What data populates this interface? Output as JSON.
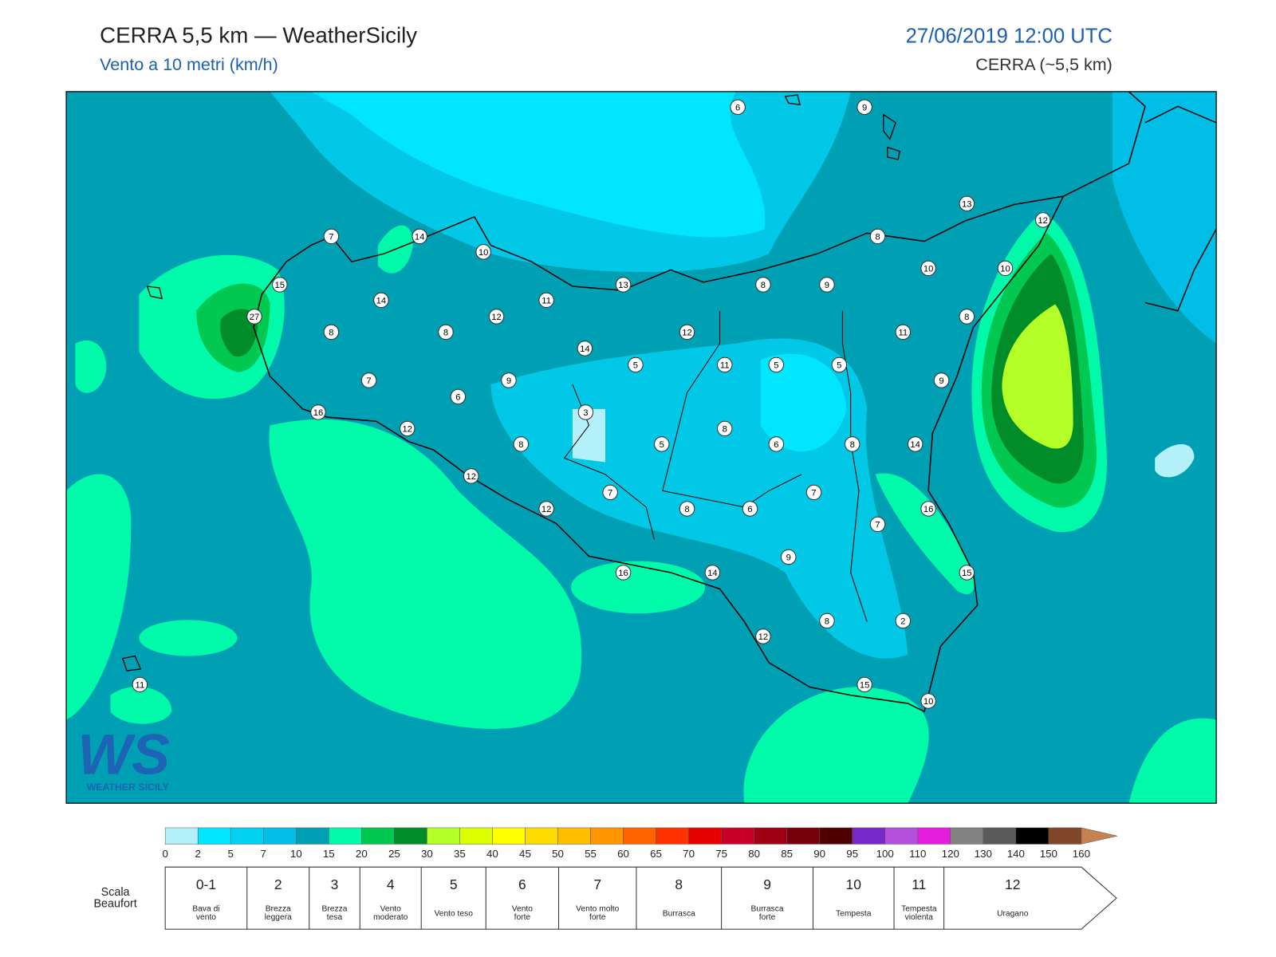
{
  "header": {
    "title": "CERRA 5,5 km — WeatherSicily",
    "subtitle": "Vento a 10 metri (km/h)",
    "datetime": "27/06/2019 12:00 UTC",
    "model": "CERRA (~5,5 km)"
  },
  "map": {
    "station_values": [
      6,
      9,
      13,
      12,
      7,
      14,
      10,
      8,
      15,
      13,
      8,
      9,
      10,
      10,
      14,
      11,
      27,
      12,
      8,
      8,
      8,
      12,
      11,
      14,
      5,
      11,
      5,
      5,
      7,
      9,
      9,
      6,
      16,
      3,
      12,
      8,
      8,
      5,
      6,
      8,
      14,
      12,
      7,
      7,
      12,
      8,
      6,
      16,
      7,
      9,
      16,
      14,
      15,
      8,
      2,
      12,
      11,
      15,
      10
    ]
  },
  "logo": {
    "mark": "WS",
    "name": "WEATHER SICILY"
  },
  "colorbar": {
    "ticks": [
      0,
      2,
      5,
      7,
      10,
      15,
      20,
      25,
      30,
      35,
      40,
      45,
      50,
      55,
      60,
      65,
      70,
      75,
      80,
      85,
      90,
      95,
      100,
      110,
      120,
      130,
      140,
      150,
      160
    ],
    "colors": [
      "#b4f0fa",
      "#00e6ff",
      "#00d2f0",
      "#00bee6",
      "#00a0b4",
      "#00faaa",
      "#00c850",
      "#008c28",
      "#b4ff28",
      "#dcff00",
      "#ffff00",
      "#ffdc00",
      "#ffbe00",
      "#ff9600",
      "#ff6400",
      "#ff3200",
      "#e60000",
      "#c80028",
      "#a00014",
      "#78000a",
      "#500000",
      "#7828c8",
      "#b450dc",
      "#e61edc",
      "#828282",
      "#5a5a5a",
      "#000000",
      "#824628",
      "#c88250"
    ]
  },
  "beaufort": {
    "label": [
      "Scala",
      "Beaufort"
    ],
    "levels": [
      {
        "force": "0-1",
        "name": [
          "Bava di",
          "vento"
        ]
      },
      {
        "force": "2",
        "name": [
          "Brezza",
          "leggera"
        ]
      },
      {
        "force": "3",
        "name": [
          "Brezza",
          "tesa"
        ]
      },
      {
        "force": "4",
        "name": [
          "Vento",
          "moderato"
        ]
      },
      {
        "force": "5",
        "name": [
          "Vento teso"
        ]
      },
      {
        "force": "6",
        "name": [
          "Vento",
          "forte"
        ]
      },
      {
        "force": "7",
        "name": [
          "Vento molto",
          "forte"
        ]
      },
      {
        "force": "8",
        "name": [
          "Burrasca"
        ]
      },
      {
        "force": "9",
        "name": [
          "Burrasca",
          "forte"
        ]
      },
      {
        "force": "10",
        "name": [
          "Tempesta"
        ]
      },
      {
        "force": "11",
        "name": [
          "Tempesta",
          "violenta"
        ]
      },
      {
        "force": "12",
        "name": [
          "Uragano"
        ]
      }
    ]
  }
}
